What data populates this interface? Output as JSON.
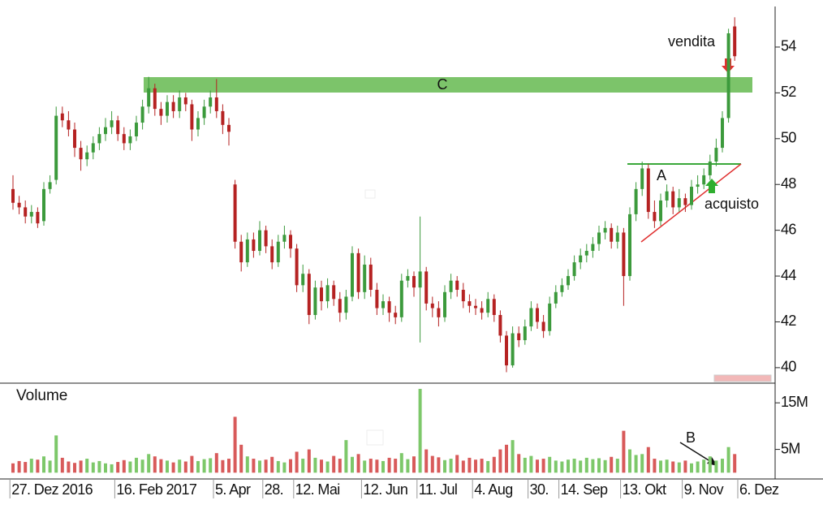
{
  "chart_data": {
    "type": "candlestick",
    "categories": [
      "27. Dez 2016",
      null,
      null,
      null,
      null,
      null,
      null,
      null,
      null,
      null,
      null,
      null,
      null,
      null,
      null,
      null,
      null,
      "16. Feb 2017",
      null,
      null,
      null,
      null,
      null,
      null,
      null,
      null,
      null,
      null,
      null,
      null,
      null,
      null,
      null,
      "5. Apr",
      null,
      null,
      null,
      null,
      null,
      null,
      null,
      "28.",
      null,
      null,
      null,
      null,
      "12. Mai",
      null,
      null,
      null,
      null,
      null,
      null,
      null,
      null,
      null,
      null,
      "12. Jun",
      null,
      null,
      null,
      null,
      null,
      null,
      null,
      null,
      "11. Jul",
      null,
      null,
      null,
      null,
      null,
      null,
      null,
      null,
      "4. Aug",
      null,
      null,
      null,
      null,
      null,
      null,
      null,
      null,
      "30.",
      null,
      null,
      null,
      null,
      "14. Sep",
      null,
      null,
      null,
      null,
      null,
      null,
      null,
      null,
      null,
      "13. Okt",
      null,
      null,
      null,
      null,
      null,
      null,
      null,
      null,
      null,
      "9. Nov",
      null,
      null,
      null,
      null,
      null,
      null,
      null,
      null,
      "6. Dez"
    ],
    "open": [
      47.8,
      47.2,
      47.0,
      46.6,
      46.8,
      46.4,
      47.8,
      48.2,
      51.1,
      50.8,
      50.4,
      49.6,
      49.1,
      49.4,
      49.8,
      50.2,
      50.5,
      50.8,
      50.2,
      49.8,
      50.1,
      50.7,
      51.4,
      52.2,
      51.3,
      51.0,
      51.6,
      51.2,
      51.8,
      51.5,
      50.4,
      50.9,
      51.4,
      51.8,
      51.2,
      50.6,
      48.0,
      45.5,
      44.6,
      45.6,
      45.1,
      46.0,
      45.3,
      44.6,
      45.5,
      45.8,
      45.2,
      43.6,
      44.1,
      42.3,
      43.5,
      42.9,
      43.6,
      43.0,
      42.4,
      43.1,
      45.0,
      43.3,
      44.5,
      43.4,
      42.6,
      42.9,
      42.4,
      42.2,
      43.8,
      44.0,
      43.5,
      44.2,
      42.8,
      42.6,
      42.2,
      43.3,
      43.8,
      43.4,
      42.9,
      42.7,
      42.6,
      42.4,
      43.0,
      42.3,
      41.4,
      40.1,
      41.5,
      41.2,
      41.8,
      42.6,
      42.0,
      41.6,
      42.8,
      43.3,
      43.6,
      44.0,
      44.6,
      44.9,
      45.1,
      45.4,
      45.9,
      46.1,
      45.5,
      45.9,
      44.0,
      46.7,
      47.8,
      48.7,
      46.8,
      46.4,
      47.3,
      47.7,
      47.0,
      47.4,
      47.1,
      47.9,
      48.0,
      48.4,
      49.0,
      49.6,
      50.9,
      54.9,
      null
    ],
    "high": [
      48.4,
      47.5,
      47.3,
      47.1,
      47.0,
      48.1,
      48.4,
      51.4,
      51.4,
      51.2,
      50.7,
      49.9,
      49.7,
      50.1,
      50.5,
      50.9,
      51.2,
      51.0,
      50.5,
      50.4,
      51.0,
      51.7,
      52.7,
      52.4,
      51.6,
      51.9,
      51.9,
      52.1,
      52.0,
      51.7,
      51.2,
      51.7,
      52.1,
      52.6,
      51.5,
      50.9,
      48.2,
      45.8,
      45.9,
      45.9,
      46.4,
      46.2,
      45.6,
      45.8,
      46.2,
      46.0,
      45.4,
      44.5,
      44.3,
      43.8,
      43.8,
      43.9,
      43.8,
      43.3,
      43.4,
      45.3,
      45.2,
      44.9,
      44.8,
      43.7,
      43.2,
      43.1,
      42.7,
      44.1,
      44.3,
      44.2,
      46.6,
      44.4,
      43.1,
      42.9,
      43.6,
      44.1,
      44.0,
      43.7,
      43.2,
      43.0,
      42.9,
      43.3,
      43.2,
      42.5,
      41.6,
      41.8,
      41.8,
      42.1,
      42.9,
      42.8,
      42.3,
      43.1,
      43.6,
      43.9,
      44.3,
      44.9,
      45.2,
      45.4,
      45.7,
      46.2,
      46.4,
      46.3,
      46.2,
      46.1,
      47.0,
      48.1,
      49.0,
      48.9,
      47.3,
      47.6,
      48.0,
      47.9,
      47.8,
      47.6,
      48.2,
      48.4,
      48.7,
      49.3,
      50.0,
      51.2,
      54.8,
      55.3,
      null
    ],
    "low": [
      46.9,
      46.7,
      46.3,
      46.3,
      46.1,
      46.2,
      47.6,
      48.0,
      50.5,
      50.1,
      49.2,
      48.6,
      48.8,
      49.1,
      49.5,
      49.9,
      50.2,
      49.9,
      49.5,
      49.5,
      49.9,
      50.4,
      51.1,
      51.0,
      50.6,
      50.7,
      50.9,
      50.9,
      51.2,
      49.9,
      50.1,
      50.6,
      51.1,
      50.9,
      50.2,
      49.7,
      45.2,
      44.2,
      44.4,
      44.8,
      44.9,
      45.0,
      44.3,
      44.4,
      45.2,
      44.8,
      43.3,
      43.3,
      41.9,
      42.1,
      42.5,
      42.6,
      42.7,
      42.0,
      42.1,
      42.9,
      43.0,
      43.0,
      43.1,
      42.3,
      42.3,
      42.0,
      41.9,
      42.0,
      43.5,
      43.1,
      41.1,
      42.5,
      42.2,
      41.8,
      42.0,
      43.0,
      43.1,
      42.6,
      42.4,
      42.3,
      42.1,
      42.2,
      42.0,
      41.1,
      39.8,
      40.0,
      40.9,
      41.0,
      41.6,
      41.7,
      41.3,
      41.4,
      42.6,
      43.1,
      43.4,
      43.8,
      44.3,
      44.6,
      44.8,
      45.1,
      45.6,
      45.2,
      45.2,
      42.7,
      43.8,
      46.4,
      47.5,
      46.5,
      46.1,
      46.2,
      47.0,
      46.7,
      46.8,
      46.8,
      46.9,
      47.6,
      47.8,
      48.2,
      48.8,
      49.4,
      50.7,
      53.4,
      null
    ],
    "close": [
      47.2,
      47.0,
      46.6,
      46.8,
      46.3,
      47.8,
      48.1,
      51.0,
      50.8,
      50.4,
      49.6,
      49.1,
      49.4,
      49.8,
      50.2,
      50.5,
      50.8,
      50.2,
      49.8,
      50.1,
      50.7,
      51.4,
      52.2,
      51.3,
      51.0,
      51.6,
      51.2,
      51.8,
      51.5,
      50.4,
      50.9,
      51.4,
      51.8,
      51.2,
      50.6,
      50.3,
      45.5,
      44.6,
      45.6,
      45.1,
      46.0,
      45.3,
      44.6,
      45.5,
      45.8,
      45.2,
      43.6,
      44.1,
      42.3,
      43.5,
      42.9,
      43.6,
      43.0,
      42.4,
      43.1,
      45.0,
      43.3,
      44.5,
      43.4,
      42.6,
      42.9,
      42.4,
      42.2,
      43.8,
      44.0,
      43.5,
      44.2,
      42.8,
      42.6,
      42.2,
      43.3,
      43.8,
      43.4,
      42.9,
      42.7,
      42.6,
      42.4,
      43.0,
      42.3,
      41.4,
      40.1,
      41.5,
      41.2,
      41.8,
      42.6,
      42.0,
      41.6,
      42.8,
      43.3,
      43.6,
      44.0,
      44.6,
      44.9,
      45.1,
      45.4,
      45.9,
      46.1,
      45.5,
      45.9,
      44.0,
      46.7,
      47.8,
      48.7,
      46.8,
      46.4,
      47.3,
      47.7,
      47.0,
      47.4,
      47.1,
      47.9,
      48.0,
      48.4,
      49.0,
      49.6,
      50.9,
      54.6,
      53.6,
      null
    ],
    "up_color": "#3c9a3c",
    "down_color": "#b52222",
    "ylim": [
      39.5,
      55.7
    ],
    "yticks": [
      40,
      42,
      44,
      46,
      48,
      50,
      52,
      54
    ],
    "volume": {
      "title": "Volume",
      "values": [
        2.0,
        2.5,
        2.3,
        3.0,
        2.8,
        3.5,
        2.6,
        8.0,
        3.2,
        2.4,
        2.1,
        2.6,
        3.0,
        2.2,
        2.5,
        2.0,
        1.8,
        2.3,
        2.7,
        2.4,
        3.2,
        2.8,
        4.0,
        3.5,
        2.9,
        2.6,
        2.2,
        2.8,
        2.4,
        3.6,
        2.5,
        2.9,
        3.1,
        4.2,
        2.7,
        3.0,
        12.0,
        6.0,
        3.5,
        3.0,
        2.6,
        2.8,
        3.4,
        2.5,
        2.2,
        2.9,
        4.5,
        3.0,
        5.0,
        3.2,
        2.8,
        2.4,
        3.6,
        3.0,
        7.0,
        3.4,
        4.0,
        2.6,
        3.0,
        2.8,
        2.5,
        3.2,
        3.0,
        4.2,
        2.9,
        3.5,
        18.0,
        5.0,
        3.6,
        3.3,
        2.7,
        3.0,
        3.8,
        2.6,
        3.2,
        2.8,
        3.0,
        2.5,
        3.4,
        5.0,
        6.0,
        7.0,
        4.0,
        3.2,
        3.6,
        2.8,
        3.0,
        3.4,
        2.6,
        2.4,
        2.8,
        3.0,
        2.6,
        3.2,
        2.9,
        3.1,
        2.7,
        3.4,
        3.0,
        9.0,
        5.0,
        3.8,
        4.0,
        5.5,
        3.0,
        2.6,
        2.8,
        2.4,
        2.2,
        2.6,
        2.0,
        2.4,
        2.8,
        3.5,
        2.6,
        3.0,
        5.5,
        4.0,
        null
      ],
      "ylim": [
        -1,
        18.7
      ],
      "yticks": [
        {
          "value": 5,
          "label": "5M"
        },
        {
          "value": 15,
          "label": "15M"
        }
      ]
    },
    "annotations": [
      "vendita",
      "acquisto",
      "A",
      "B",
      "C"
    ]
  }
}
